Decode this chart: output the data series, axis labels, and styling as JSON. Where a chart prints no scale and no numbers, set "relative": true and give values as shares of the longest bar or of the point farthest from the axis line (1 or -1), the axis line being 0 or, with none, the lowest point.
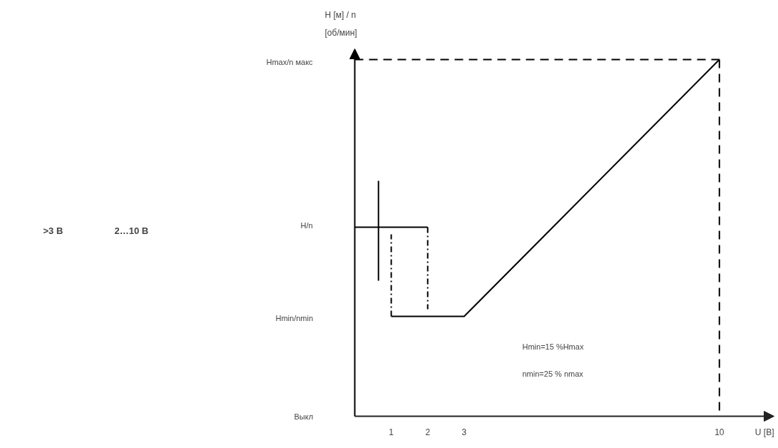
{
  "chart_data": {
    "type": "line",
    "relative": true,
    "ylabel": "H [м] / n\n[об/мин]",
    "xlabel": "U [B]",
    "xlim": [
      0,
      11.5
    ],
    "xticks": [
      1,
      2,
      3,
      10
    ],
    "grid": false,
    "annotations": [
      ">3 B",
      "2…10 B",
      "Hmin=15 %Hmax",
      "nmin=25 % nmax",
      "Выкл",
      "Hmin/nmin",
      "H/n",
      "Hmax/n макс"
    ],
    "series": [
      {
        "color": "#000000",
        "x": [
          0,
          2
        ],
        "values": [
          0.53,
          0.53
        ],
        "line_style": "solid"
      },
      {
        "color": "#000000",
        "x": [
          1,
          3,
          10
        ],
        "values": [
          0.28,
          0.28,
          1
        ],
        "line_style": "solid"
      },
      {
        "color": "#000000",
        "x": [
          0,
          10
        ],
        "values": [
          1,
          1
        ],
        "line_style": "dashed"
      },
      {
        "color": "#000000",
        "x": [
          10,
          10
        ],
        "values": [
          1,
          0
        ],
        "line_style": "dashed"
      },
      {
        "color": "#000000",
        "x": [
          1,
          1
        ],
        "values": [
          0.28,
          0.51
        ],
        "line_style": "dashdot"
      },
      {
        "color": "#000000",
        "x": [
          2,
          2
        ],
        "values": [
          0.53,
          0.3
        ],
        "line_style": "dashdot"
      },
      {
        "color": "#000000",
        "x": [
          0.65,
          0.65
        ],
        "values": [
          0.38,
          0.66
        ],
        "line_style": "solid"
      }
    ]
  }
}
